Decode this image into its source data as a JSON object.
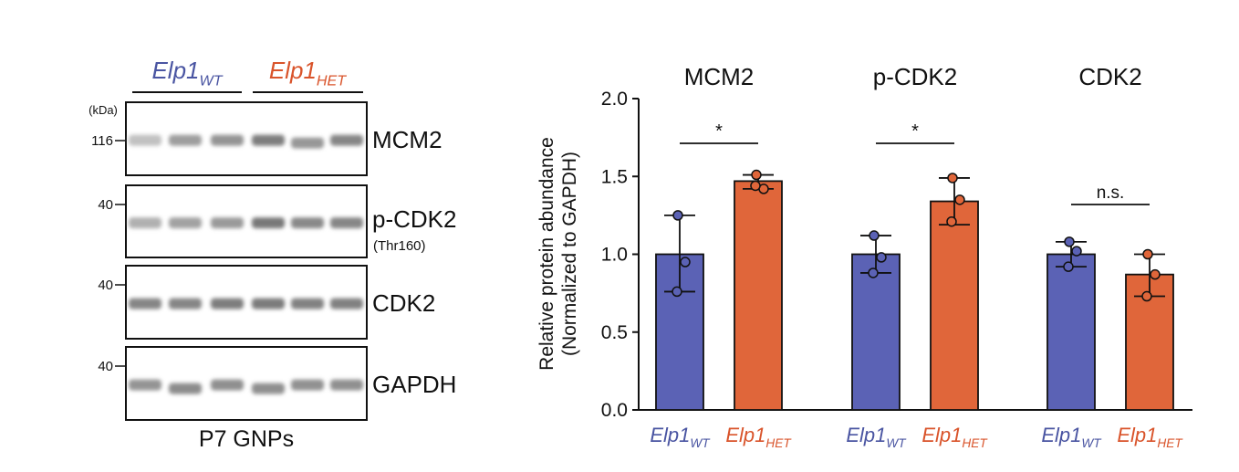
{
  "colors": {
    "wt": "#5b62b5",
    "het": "#e0663a",
    "axis": "#111111"
  },
  "blot": {
    "kda_label": "(kDa)",
    "groups": [
      {
        "base": "Elp1",
        "sub": "WT",
        "color": "#4a55a2"
      },
      {
        "base": "Elp1",
        "sub": "HET",
        "color": "#d9542b"
      }
    ],
    "panels": [
      {
        "name": "MCM2",
        "sublabel": "",
        "marker": "116",
        "intensities": [
          0.3,
          0.55,
          0.62,
          0.78,
          0.6,
          0.72
        ],
        "offsets": [
          0,
          0,
          0,
          0,
          3,
          0
        ]
      },
      {
        "name": "p-CDK2",
        "sublabel": "(Thr160)",
        "marker": "40",
        "intensities": [
          0.42,
          0.52,
          0.58,
          0.82,
          0.7,
          0.72
        ],
        "offsets": [
          0,
          0,
          0,
          0,
          0,
          0
        ]
      },
      {
        "name": "CDK2",
        "sublabel": "",
        "marker": "40",
        "intensities": [
          0.72,
          0.72,
          0.78,
          0.8,
          0.75,
          0.76
        ],
        "offsets": [
          0,
          0,
          0,
          0,
          0,
          0
        ]
      },
      {
        "name": "GAPDH",
        "sublabel": "",
        "marker": "40",
        "intensities": [
          0.62,
          0.68,
          0.66,
          0.66,
          0.64,
          0.65
        ],
        "offsets": [
          0,
          4,
          0,
          4,
          0,
          0
        ]
      }
    ],
    "caption": "P7 GNPs"
  },
  "chart_data": {
    "type": "bar",
    "ylabel_line1": "Relative protein abundance",
    "ylabel_line2": "(Normalized to GAPDH)",
    "ylim": [
      0,
      2.0
    ],
    "yticks": [
      "0.0",
      "0.5",
      "1.0",
      "1.5",
      "2.0"
    ],
    "groups": [
      {
        "title": "MCM2",
        "significance": "*",
        "bars": [
          {
            "base": "Elp1",
            "sub": "WT",
            "series": "wt",
            "mean": 1.0,
            "err": [
              0.76,
              1.25
            ],
            "points": [
              1.25,
              0.95,
              0.76
            ]
          },
          {
            "base": "Elp1",
            "sub": "HET",
            "series": "het",
            "mean": 1.47,
            "err": [
              1.42,
              1.51
            ],
            "points": [
              1.51,
              1.42,
              1.44
            ]
          }
        ]
      },
      {
        "title": "p-CDK2",
        "significance": "*",
        "bars": [
          {
            "base": "Elp1",
            "sub": "WT",
            "series": "wt",
            "mean": 1.0,
            "err": [
              0.88,
              1.12
            ],
            "points": [
              1.12,
              0.98,
              0.88
            ]
          },
          {
            "base": "Elp1",
            "sub": "HET",
            "series": "het",
            "mean": 1.34,
            "err": [
              1.19,
              1.49
            ],
            "points": [
              1.49,
              1.35,
              1.21
            ]
          }
        ]
      },
      {
        "title": "CDK2",
        "significance": "n.s.",
        "bars": [
          {
            "base": "Elp1",
            "sub": "WT",
            "series": "wt",
            "mean": 1.0,
            "err": [
              0.92,
              1.08
            ],
            "points": [
              1.08,
              1.02,
              0.92
            ]
          },
          {
            "base": "Elp1",
            "sub": "HET",
            "series": "het",
            "mean": 0.87,
            "err": [
              0.73,
              1.0
            ],
            "points": [
              1.0,
              0.87,
              0.73
            ]
          }
        ]
      }
    ]
  }
}
